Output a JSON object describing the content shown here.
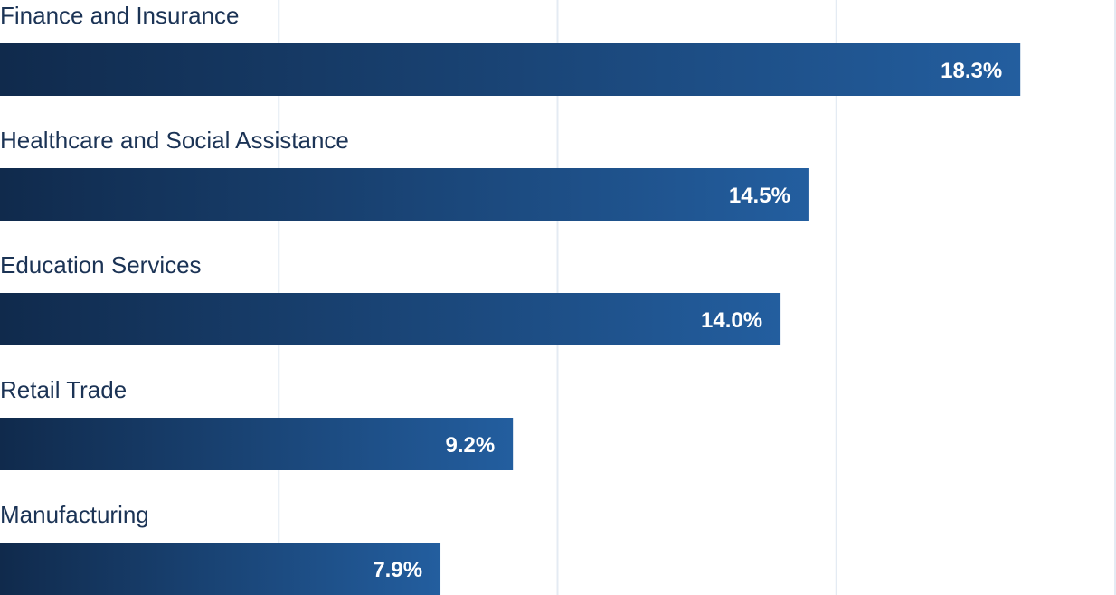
{
  "chart_data": {
    "type": "bar",
    "orientation": "horizontal",
    "categories": [
      "Finance and Insurance",
      "Healthcare and Social Assistance",
      "Education Services",
      "Retail Trade",
      "Manufacturing"
    ],
    "values": [
      18.3,
      14.5,
      14.0,
      9.2,
      7.9
    ],
    "value_labels": [
      "18.3%",
      "14.5%",
      "14.0%",
      "9.2%",
      "7.9%"
    ],
    "unit": "%",
    "xlim": [
      0,
      20
    ],
    "grid": true,
    "legend": "none",
    "title": "",
    "xlabel": "",
    "ylabel": ""
  },
  "colors": {
    "bar_start": "#102a4c",
    "bar_end": "#235e9f",
    "grid": "#e4ebf3",
    "label": "#1b3355",
    "value_text": "#ffffff"
  }
}
